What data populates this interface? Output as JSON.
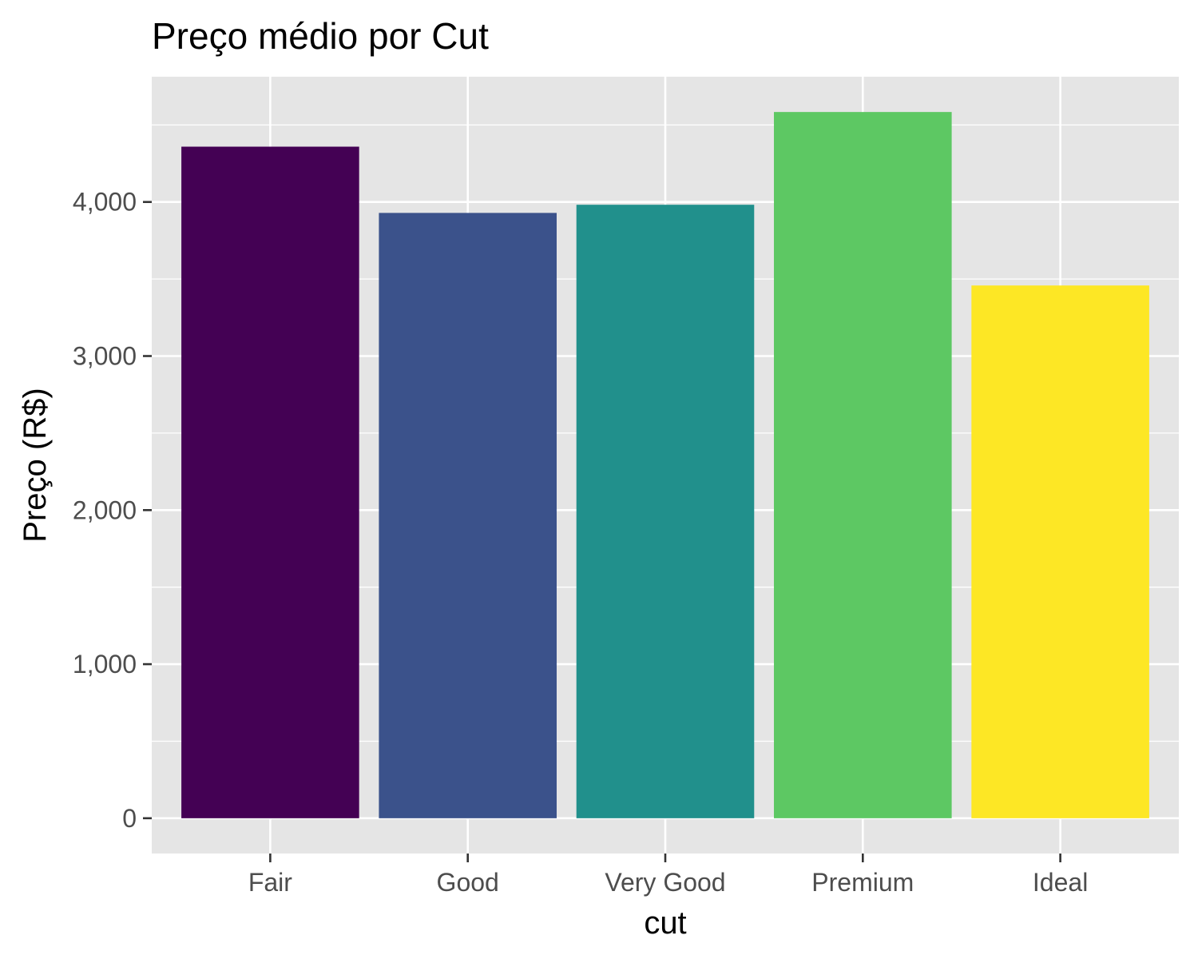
{
  "chart_data": {
    "type": "bar",
    "title": "Preço médio por Cut",
    "xlabel": "cut",
    "ylabel": "Preço (R$)",
    "categories": [
      "Fair",
      "Good",
      "Very Good",
      "Premium",
      "Ideal"
    ],
    "values": [
      4359,
      3929,
      3982,
      4584,
      3458
    ],
    "colors": [
      "#440154",
      "#3B528B",
      "#21908C",
      "#5DC863",
      "#FDE725"
    ],
    "yticks": [
      0,
      1000,
      2000,
      3000,
      4000
    ],
    "ytick_labels": [
      "0",
      "1,000",
      "2,000",
      "3,000",
      "4,000"
    ],
    "ylim": [
      -229,
      4813
    ],
    "grid": true,
    "legend": "none",
    "panel_background": "#E5E5E5"
  }
}
